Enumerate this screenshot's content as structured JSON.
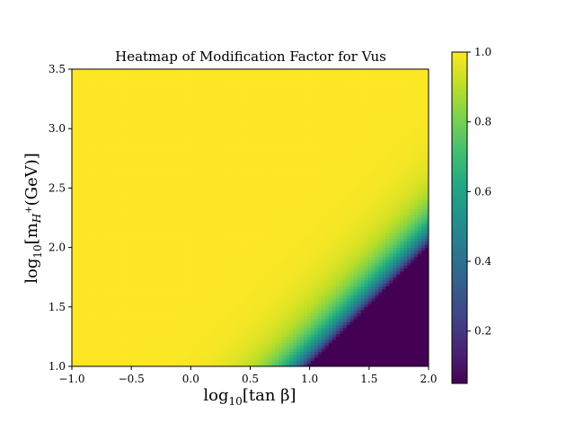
{
  "chart_data": {
    "type": "heatmap",
    "title": "Heatmap of Modification Factor for Vus",
    "xlabel": {
      "prefix": "log",
      "sub": "10",
      "body": "[tan β]"
    },
    "ylabel": {
      "prefix": "log",
      "sub": "10",
      "body_open": "[m",
      "body_sub": "H",
      "body_sup": "+",
      "body_close": "(GeV)]"
    },
    "x_range": [
      -1.0,
      2.0
    ],
    "y_range": [
      1.0,
      3.5
    ],
    "x_ticks": [
      -1.0,
      -0.5,
      0.0,
      0.5,
      1.0,
      1.5,
      2.0
    ],
    "x_tick_labels": [
      "−1.0",
      "−0.5",
      "0.0",
      "0.5",
      "1.0",
      "1.5",
      "2.0"
    ],
    "y_ticks": [
      1.0,
      1.5,
      2.0,
      2.5,
      3.0,
      3.5
    ],
    "y_tick_labels": [
      "1.0",
      "1.5",
      "2.0",
      "2.5",
      "3.0",
      "3.5"
    ],
    "colorbar": {
      "colormap": "viridis",
      "range": [
        0.05,
        1.0
      ],
      "ticks": [
        0.2,
        0.4,
        0.6,
        0.8,
        1.0
      ],
      "tick_labels": [
        "0.2",
        "0.4",
        "0.6",
        "0.8",
        "1.0"
      ]
    },
    "value_model": "1 - (tanβ / m_H+)^2 with tanβ = 10^x, m_H+ = 10^y (GeV), floored at 0.05",
    "grid": false
  }
}
